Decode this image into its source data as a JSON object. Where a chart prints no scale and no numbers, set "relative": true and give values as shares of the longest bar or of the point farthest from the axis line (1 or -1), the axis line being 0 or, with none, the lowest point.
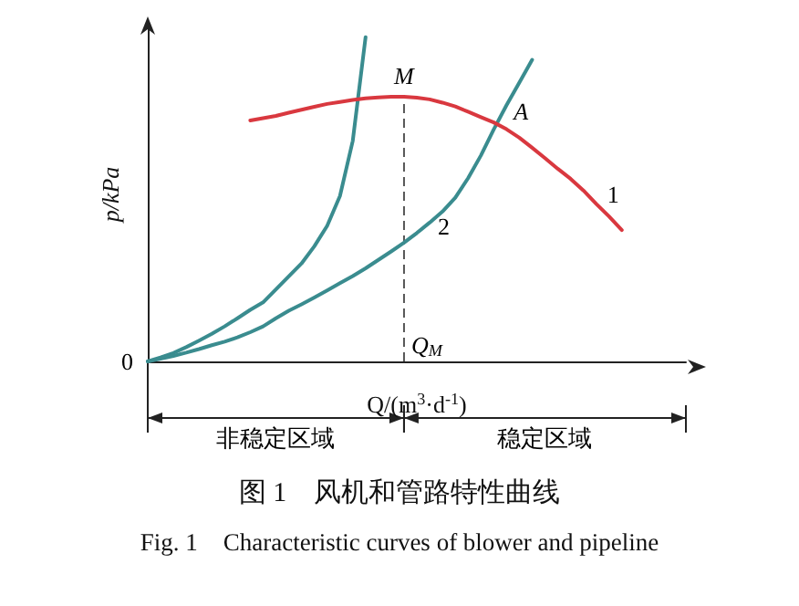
{
  "chart_data": {
    "type": "line",
    "title": "图 1　风机和管路特性曲线",
    "subtitle": "Fig. 1　Characteristic curves of blower and pipeline",
    "xlabel": "Q/(m$^{3}$·d$^{-1}$)",
    "ylabel": "p/kPa",
    "relative": true,
    "line_style": "solid",
    "categories": [
      null,
      null,
      null,
      null,
      null,
      null,
      null,
      null,
      null,
      null,
      null,
      null,
      null,
      null,
      null,
      null,
      null,
      null,
      null,
      null,
      null,
      null,
      null,
      null,
      null,
      null,
      null,
      null,
      null,
      null,
      null,
      null,
      null,
      null,
      null,
      null,
      null,
      null,
      null,
      null,
      null,
      null,
      null
    ],
    "series": [
      {
        "color": "#3a8c8f",
        "values": [
          0,
          0.012,
          0.026,
          0.044,
          0.064,
          0.085,
          0.108,
          0.133,
          0.159,
          0.182,
          0.222,
          0.262,
          0.302,
          0.355,
          0.418,
          0.51,
          0.68,
          1.0,
          null,
          null,
          null,
          null,
          null,
          null,
          null,
          null,
          null,
          null,
          null,
          null,
          null,
          null,
          null,
          null,
          null,
          null,
          null,
          null,
          null,
          null,
          null,
          null,
          null
        ]
      },
      {
        "color": "#3a8c8f",
        "values": [
          0,
          0.008,
          0.017,
          0.027,
          0.038,
          0.05,
          0.061,
          0.074,
          0.09,
          0.108,
          0.133,
          0.156,
          0.176,
          0.197,
          0.219,
          0.241,
          0.263,
          0.287,
          0.313,
          0.339,
          0.366,
          0.396,
          0.428,
          0.462,
          0.505,
          0.565,
          0.635,
          0.715,
          0.79,
          0.86,
          0.93,
          null,
          null,
          null,
          null,
          null,
          null,
          null,
          null,
          null,
          null,
          null,
          null
        ]
      },
      {
        "color": "#d9383f",
        "values": [
          null,
          null,
          null,
          null,
          null,
          null,
          null,
          null,
          0.743,
          0.75,
          0.757,
          0.767,
          0.776,
          0.785,
          0.794,
          0.8,
          0.806,
          0.811,
          0.814,
          0.816,
          0.816,
          0.813,
          0.808,
          0.798,
          0.786,
          0.77,
          0.753,
          0.737,
          0.716,
          0.69,
          0.659,
          0.627,
          0.594,
          0.563,
          0.527,
          0.486,
          0.447,
          0.405,
          null,
          null,
          null,
          null,
          null
        ]
      }
    ],
    "annotations": [
      "0",
      "M",
      "A",
      "1",
      "2",
      "Q$_{M}$",
      "非稳定区域",
      "稳定区域"
    ]
  }
}
